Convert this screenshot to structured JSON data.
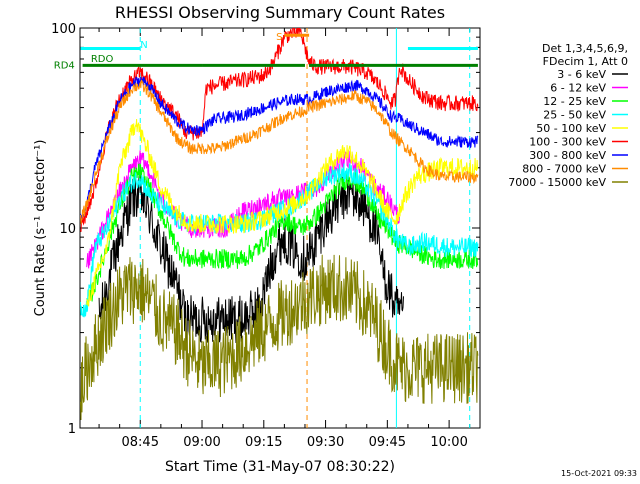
{
  "chart_data": {
    "type": "line",
    "title": "RHESSI Observing Summary Count Rates",
    "xlabel": "Start Time (31-May-07 08:30:22)",
    "ylabel": "Count Rate (s⁻¹ detector⁻¹)",
    "yscale": "log",
    "ylim": [
      1,
      100
    ],
    "xlim_minutes_after_0830": [
      0.37,
      97.5
    ],
    "x_ticks": [
      {
        "label": "08:45",
        "t": 15
      },
      {
        "label": "09:00",
        "t": 30
      },
      {
        "label": "09:15",
        "t": 45
      },
      {
        "label": "09:30",
        "t": 60
      },
      {
        "label": "09:45",
        "t": 75
      },
      {
        "label": "10:00",
        "t": 90
      }
    ],
    "y_ticks": [
      {
        "label": "1",
        "value": 1
      },
      {
        "label": "10",
        "value": 10
      },
      {
        "label": "100",
        "value": 100
      }
    ],
    "legend_position": "right",
    "legend_header": [
      "Det 1,3,4,5,6,9,",
      "FDecim 1, Att 0"
    ],
    "series": [
      {
        "name": "3 - 6 keV",
        "color": "#000000",
        "points": [
          [
            5,
            3.5
          ],
          [
            10,
            9
          ],
          [
            13,
            14
          ],
          [
            15,
            15
          ],
          [
            17,
            12
          ],
          [
            20,
            8
          ],
          [
            24,
            5
          ],
          [
            26,
            3.5
          ],
          [
            30,
            3.5
          ],
          [
            36,
            3.5
          ],
          [
            40,
            3.5
          ],
          [
            44,
            4
          ],
          [
            48,
            8
          ],
          [
            50,
            9
          ],
          [
            52,
            8
          ],
          [
            55,
            7
          ],
          [
            57,
            8
          ],
          [
            60,
            11
          ],
          [
            64,
            14
          ],
          [
            66,
            15
          ],
          [
            69,
            13
          ],
          [
            72,
            10
          ],
          [
            74,
            6
          ],
          [
            77,
            4
          ],
          [
            79,
            3.5
          ]
        ]
      },
      {
        "name": "6 - 12 keV",
        "color": "#ff00ff",
        "points": [
          [
            2,
            6.5
          ],
          [
            5,
            9
          ],
          [
            10,
            15
          ],
          [
            13,
            20
          ],
          [
            15,
            22
          ],
          [
            17,
            20
          ],
          [
            20,
            14
          ],
          [
            24,
            11
          ],
          [
            27,
            10
          ],
          [
            30,
            10
          ],
          [
            36,
            10
          ],
          [
            40,
            12
          ],
          [
            44,
            13
          ],
          [
            48,
            14
          ],
          [
            51,
            14
          ],
          [
            54,
            15
          ],
          [
            58,
            16
          ],
          [
            62,
            20
          ],
          [
            66,
            22
          ],
          [
            69,
            20
          ],
          [
            72,
            16
          ],
          [
            75,
            14
          ],
          [
            77,
            12
          ],
          [
            78,
            11.5
          ]
        ]
      },
      {
        "name": "12 - 25 keV",
        "color": "#00ff00",
        "points": [
          [
            2,
            4
          ],
          [
            5,
            6
          ],
          [
            10,
            13
          ],
          [
            13,
            18
          ],
          [
            15,
            19
          ],
          [
            17,
            16
          ],
          [
            20,
            12
          ],
          [
            24,
            8
          ],
          [
            26,
            7
          ],
          [
            30,
            7
          ],
          [
            36,
            7
          ],
          [
            40,
            7
          ],
          [
            44,
            8
          ],
          [
            48,
            10
          ],
          [
            50,
            11
          ],
          [
            54,
            10
          ],
          [
            57,
            11
          ],
          [
            61,
            14
          ],
          [
            64,
            17
          ],
          [
            66,
            18
          ],
          [
            70,
            15
          ],
          [
            73,
            11
          ],
          [
            75,
            10
          ],
          [
            77,
            8.5
          ],
          [
            80,
            8
          ],
          [
            86,
            7
          ],
          [
            97,
            7
          ]
        ]
      },
      {
        "name": "25 - 50 keV",
        "color": "#00ffff",
        "points": [
          [
            0.5,
            4
          ],
          [
            2,
            4
          ],
          [
            4,
            8
          ],
          [
            7,
            10
          ],
          [
            10,
            14
          ],
          [
            13,
            17
          ],
          [
            15,
            18
          ],
          [
            17,
            15
          ],
          [
            20,
            13
          ],
          [
            24,
            11
          ],
          [
            27,
            10.5
          ],
          [
            30,
            10.5
          ],
          [
            36,
            10.5
          ],
          [
            40,
            10.5
          ],
          [
            44,
            11
          ],
          [
            48,
            12
          ],
          [
            52,
            13
          ],
          [
            56,
            15
          ],
          [
            60,
            18
          ],
          [
            64,
            19
          ],
          [
            66,
            19
          ],
          [
            69,
            17
          ],
          [
            72,
            14
          ],
          [
            75,
            11
          ],
          [
            77,
            9
          ],
          [
            80,
            8
          ],
          [
            84,
            8.5
          ],
          [
            90,
            8
          ],
          [
            97,
            8
          ]
        ]
      },
      {
        "name": "50 - 100 keV",
        "color": "#ffff00",
        "points": [
          [
            2,
            4
          ],
          [
            4,
            5.5
          ],
          [
            7,
            8
          ],
          [
            10,
            20
          ],
          [
            12,
            26
          ],
          [
            14,
            35
          ],
          [
            15,
            30
          ],
          [
            17,
            24
          ],
          [
            20,
            16
          ],
          [
            24,
            12
          ],
          [
            27,
            10.5
          ],
          [
            30,
            10.5
          ],
          [
            36,
            10.5
          ],
          [
            40,
            10.5
          ],
          [
            44,
            11
          ],
          [
            48,
            12
          ],
          [
            52,
            13
          ],
          [
            56,
            15
          ],
          [
            60,
            20
          ],
          [
            64,
            24
          ],
          [
            66,
            24
          ],
          [
            69,
            20
          ],
          [
            72,
            16
          ],
          [
            75,
            12
          ],
          [
            77,
            11
          ],
          [
            79,
            14
          ],
          [
            82,
            18
          ],
          [
            88,
            20
          ],
          [
            97,
            20
          ]
        ]
      },
      {
        "name": "100 - 300 keV",
        "color": "#ff0000",
        "points": [
          [
            0.5,
            10
          ],
          [
            2,
            12
          ],
          [
            4,
            16
          ],
          [
            7,
            30
          ],
          [
            10,
            45
          ],
          [
            13,
            55
          ],
          [
            15,
            60
          ],
          [
            17,
            55
          ],
          [
            20,
            44
          ],
          [
            24,
            36
          ],
          [
            26,
            30
          ],
          [
            28,
            30
          ],
          [
            30,
            30
          ],
          [
            31,
            50
          ],
          [
            34,
            52
          ],
          [
            38,
            54
          ],
          [
            42,
            56
          ],
          [
            45,
            58
          ],
          [
            47,
            65
          ],
          [
            50,
            90
          ],
          [
            52,
            95
          ],
          [
            54,
            95
          ],
          [
            56,
            67
          ],
          [
            58,
            64
          ],
          [
            62,
            64
          ],
          [
            66,
            64
          ],
          [
            70,
            60
          ],
          [
            73,
            52
          ],
          [
            76,
            42
          ],
          [
            77,
            44
          ],
          [
            78,
            65
          ],
          [
            80,
            55
          ],
          [
            84,
            45
          ],
          [
            88,
            42
          ],
          [
            97,
            42
          ]
        ]
      },
      {
        "name": "300 - 800 keV",
        "color": "#0000ff",
        "points": [
          [
            0.5,
            11
          ],
          [
            2,
            13
          ],
          [
            4,
            20
          ],
          [
            7,
            30
          ],
          [
            10,
            43
          ],
          [
            13,
            52
          ],
          [
            15,
            55
          ],
          [
            17,
            52
          ],
          [
            20,
            42
          ],
          [
            24,
            34
          ],
          [
            27,
            31
          ],
          [
            30,
            31
          ],
          [
            33,
            35
          ],
          [
            38,
            36
          ],
          [
            42,
            38
          ],
          [
            45,
            40
          ],
          [
            48,
            42
          ],
          [
            52,
            44
          ],
          [
            56,
            44
          ],
          [
            60,
            48
          ],
          [
            64,
            50
          ],
          [
            67,
            52
          ],
          [
            70,
            49
          ],
          [
            73,
            43
          ],
          [
            76,
            36
          ],
          [
            78,
            35
          ],
          [
            80,
            33
          ],
          [
            84,
            30
          ],
          [
            88,
            27
          ],
          [
            97,
            27
          ]
        ]
      },
      {
        "name": "800 - 7000 keV",
        "color": "#ff8c00",
        "points": [
          [
            0.5,
            11
          ],
          [
            2,
            13
          ],
          [
            4,
            18
          ],
          [
            7,
            28
          ],
          [
            10,
            40
          ],
          [
            13,
            50
          ],
          [
            15,
            52
          ],
          [
            17,
            48
          ],
          [
            20,
            38
          ],
          [
            24,
            28
          ],
          [
            27,
            25
          ],
          [
            30,
            25
          ],
          [
            34,
            25
          ],
          [
            38,
            27
          ],
          [
            42,
            29
          ],
          [
            46,
            32
          ],
          [
            50,
            36
          ],
          [
            54,
            38
          ],
          [
            56,
            40
          ],
          [
            60,
            42
          ],
          [
            64,
            44
          ],
          [
            67,
            46
          ],
          [
            70,
            43
          ],
          [
            73,
            38
          ],
          [
            76,
            30
          ],
          [
            78,
            27
          ],
          [
            80,
            25
          ],
          [
            84,
            20
          ],
          [
            88,
            18
          ],
          [
            97,
            18
          ]
        ]
      },
      {
        "name": "7000 - 15000 keV",
        "color": "#808000",
        "points": [
          [
            0.5,
            1.5
          ],
          [
            2,
            2
          ],
          [
            4,
            2.5
          ],
          [
            7,
            3.5
          ],
          [
            10,
            4.5
          ],
          [
            12,
            5
          ],
          [
            15,
            5
          ],
          [
            18,
            4.2
          ],
          [
            20,
            3.5
          ],
          [
            24,
            3
          ],
          [
            26,
            2.5
          ],
          [
            30,
            2
          ],
          [
            36,
            2.2
          ],
          [
            40,
            2.5
          ],
          [
            44,
            3
          ],
          [
            48,
            3.5
          ],
          [
            52,
            4
          ],
          [
            56,
            4.5
          ],
          [
            60,
            5
          ],
          [
            64,
            5
          ],
          [
            68,
            4.5
          ],
          [
            72,
            3.5
          ],
          [
            75,
            2.5
          ],
          [
            78,
            2
          ],
          [
            80,
            2
          ],
          [
            84,
            2
          ],
          [
            97,
            2
          ]
        ]
      }
    ],
    "state_bars": [
      {
        "label": "RD4",
        "color": "#008000",
        "value": 65,
        "segments": [
          [
            1,
            30
          ],
          [
            30,
            55
          ],
          [
            56,
            97
          ]
        ]
      },
      {
        "label": "RDO",
        "color": "#008000",
        "value": 68,
        "segments": []
      },
      {
        "label": "N",
        "color": "#00ffff",
        "value": 79,
        "segments": [
          [
            0.5,
            15
          ],
          [
            80,
            97
          ]
        ]
      },
      {
        "label": "S",
        "color": "#ff8c00",
        "value": 92,
        "segments": [
          [
            50,
            56
          ]
        ]
      }
    ],
    "state_labels": [
      {
        "text": "RD4",
        "t": -6,
        "value": 65,
        "color": "#008000"
      },
      {
        "text": "RDO",
        "t": 3,
        "value": 70,
        "color": "#008000"
      },
      {
        "text": "N",
        "t": 15,
        "value": 82,
        "color": "#00ffff"
      },
      {
        "text": "S",
        "t": 48,
        "value": 90,
        "color": "#ff8c00"
      }
    ],
    "vertical_markers": [
      {
        "t": 15,
        "color": "#00ffff",
        "style": "dashed"
      },
      {
        "t": 55.5,
        "color": "#ff8c00",
        "style": "dashed"
      },
      {
        "t": 77.2,
        "color": "#00ffff",
        "style": "solid"
      },
      {
        "t": 95,
        "color": "#00ffff",
        "style": "dashed"
      }
    ],
    "annotations": [
      "15-Oct-2021 09:33"
    ]
  }
}
